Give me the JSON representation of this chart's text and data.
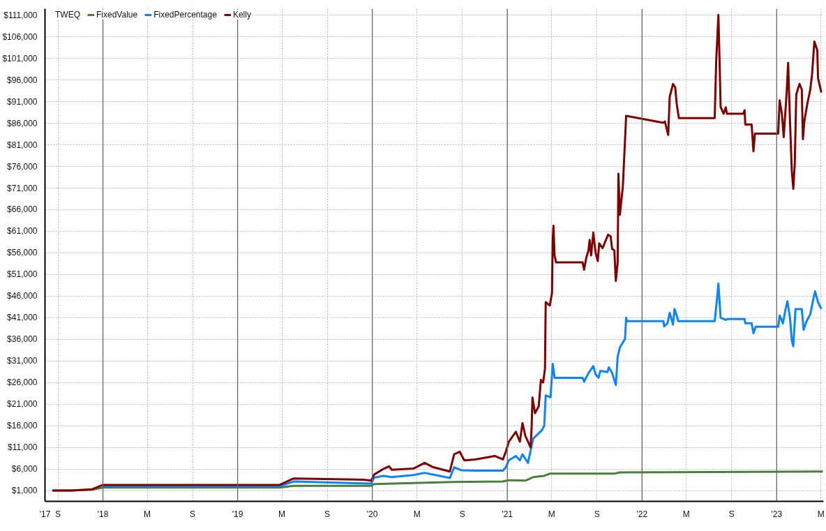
{
  "chart_data": {
    "type": "line",
    "legend_title": "TWEQ",
    "legend": "top left",
    "grid": true,
    "xlim": [
      "2017-07-28",
      "2023-05-08"
    ],
    "xticks": [
      {
        "value": "2017-07-28",
        "label": "'17"
      },
      {
        "value": "2017-09-01",
        "label": "S"
      },
      {
        "value": "2018-01-01",
        "label": "'18"
      },
      {
        "value": "2018-05-01",
        "label": "M"
      },
      {
        "value": "2018-09-01",
        "label": "S"
      },
      {
        "value": "2019-01-01",
        "label": "'19"
      },
      {
        "value": "2019-05-01",
        "label": "M"
      },
      {
        "value": "2019-09-01",
        "label": "S"
      },
      {
        "value": "2020-01-01",
        "label": "'20"
      },
      {
        "value": "2020-05-01",
        "label": "M"
      },
      {
        "value": "2020-09-01",
        "label": "S"
      },
      {
        "value": "2021-01-01",
        "label": "'21"
      },
      {
        "value": "2021-05-01",
        "label": "M"
      },
      {
        "value": "2021-09-01",
        "label": "S"
      },
      {
        "value": "2022-01-01",
        "label": "'22"
      },
      {
        "value": "2022-05-01",
        "label": "M"
      },
      {
        "value": "2022-09-01",
        "label": "S"
      },
      {
        "value": "2023-01-01",
        "label": "'23"
      },
      {
        "value": "2023-05-01",
        "label": "M"
      }
    ],
    "ylim": [
      -1500,
      112500
    ],
    "yticks": [
      {
        "value": 1000,
        "label": "$1,000"
      },
      {
        "value": 6000,
        "label": "$6,000"
      },
      {
        "value": 11000,
        "label": "$11,000"
      },
      {
        "value": 16000,
        "label": "$16,000"
      },
      {
        "value": 21000,
        "label": "$21,000"
      },
      {
        "value": 26000,
        "label": "$26,000"
      },
      {
        "value": 31000,
        "label": "$31,000"
      },
      {
        "value": 36000,
        "label": "$36,000"
      },
      {
        "value": 41000,
        "label": "$41,000"
      },
      {
        "value": 46000,
        "label": "$46,000"
      },
      {
        "value": 51000,
        "label": "$51,000"
      },
      {
        "value": 56000,
        "label": "$56,000"
      },
      {
        "value": 61000,
        "label": "$61,000"
      },
      {
        "value": 66000,
        "label": "$66,000"
      },
      {
        "value": 71000,
        "label": "$71,000"
      },
      {
        "value": 76000,
        "label": "$76,000"
      },
      {
        "value": 81000,
        "label": "$81,000"
      },
      {
        "value": 86000,
        "label": "$86,000"
      },
      {
        "value": 91000,
        "label": "$91,000"
      },
      {
        "value": 96000,
        "label": "$96,000"
      },
      {
        "value": 101000,
        "label": "$101,000"
      },
      {
        "value": 106000,
        "label": "$106,000"
      },
      {
        "value": 111000,
        "label": "$111,000"
      }
    ],
    "series": [
      {
        "name": "FixedValue",
        "color": "#4a7f3c",
        "x": [
          "2017-08-17",
          "2017-10-07",
          "2017-12-03",
          "2018-01-01",
          "2019-04-25",
          "2019-06-02",
          "2019-12-29",
          "2020-01-06",
          "2020-08-06",
          "2020-12-20",
          "2021-01-05",
          "2021-02-19",
          "2021-03-12",
          "2021-04-11",
          "2021-04-26",
          "2021-10-18",
          "2021-11-02",
          "2023-05-06"
        ],
        "values": [
          1000,
          1000,
          1200,
          1700,
          1700,
          2100,
          2100,
          2500,
          3000,
          3100,
          3400,
          3300,
          4100,
          4400,
          4900,
          4900,
          5200,
          5400
        ]
      },
      {
        "name": "FixedPercentage",
        "color": "#0a84ff",
        "x": [
          "2018-01-01",
          "2019-04-25",
          "2019-06-02",
          "2019-12-29",
          "2020-01-06",
          "2020-01-31",
          "2020-02-23",
          "2020-04-22",
          "2020-05-22",
          "2020-07-29",
          "2020-08-10",
          "2020-08-29",
          "2020-10-06",
          "2020-12-20",
          "2020-12-28",
          "2021-01-05",
          "2021-01-24",
          "2021-02-04",
          "2021-02-11",
          "2021-02-26",
          "2021-03-12",
          "2021-04-04",
          "2021-04-11",
          "2021-04-15",
          "2021-04-28",
          "2021-05-04",
          "2021-05-09",
          "2021-07-24",
          "2021-07-28",
          "2021-08-09",
          "2021-08-22",
          "2021-08-28",
          "2021-09-05",
          "2021-09-10",
          "2021-09-29",
          "2021-10-03",
          "2021-10-12",
          "2021-10-22",
          "2021-10-27",
          "2021-11-02",
          "2021-11-16",
          "2021-11-19",
          "2021-11-21",
          "2022-02-28",
          "2022-03-02",
          "2022-03-11",
          "2022-03-17",
          "2022-03-26",
          "2022-03-30",
          "2022-04-05",
          "2022-04-09",
          "2022-07-17",
          "2022-07-23",
          "2022-07-27",
          "2022-08-02",
          "2022-08-16",
          "2022-08-21",
          "2022-10-06",
          "2022-10-08",
          "2022-10-25",
          "2022-10-30",
          "2022-11-05",
          "2023-01-05",
          "2023-01-09",
          "2023-01-18",
          "2023-01-24",
          "2023-01-30",
          "2023-02-06",
          "2023-02-11",
          "2023-02-15",
          "2023-02-21",
          "2023-03-01",
          "2023-03-10",
          "2023-03-15",
          "2023-03-23",
          "2023-04-02",
          "2023-04-11",
          "2023-04-15",
          "2023-04-23",
          "2023-05-02"
        ],
        "values": [
          2000,
          2000,
          3100,
          2600,
          4000,
          4400,
          4100,
          4600,
          5100,
          3900,
          6400,
          5700,
          5600,
          5600,
          6400,
          8000,
          9000,
          8000,
          9400,
          7400,
          13000,
          14900,
          16000,
          23000,
          22600,
          30300,
          27100,
          27100,
          26200,
          28200,
          29800,
          27900,
          27100,
          28700,
          28400,
          29500,
          28200,
          25400,
          32000,
          34100,
          36100,
          41000,
          40200,
          40200,
          39000,
          39700,
          42100,
          39400,
          43000,
          41500,
          40200,
          40200,
          45100,
          48900,
          41000,
          40500,
          40700,
          40700,
          39700,
          39700,
          37400,
          38900,
          38900,
          41500,
          39700,
          42600,
          44800,
          41000,
          35700,
          34400,
          43000,
          43000,
          43000,
          38200,
          40200,
          41800,
          45600,
          47100,
          44600,
          43000
        ]
      },
      {
        "name": "Kelly",
        "color": "#800000",
        "x": [
          "2017-08-17",
          "2017-10-07",
          "2017-12-03",
          "2018-01-01",
          "2019-04-25",
          "2019-06-02",
          "2019-12-08",
          "2019-12-29",
          "2020-01-06",
          "2020-01-31",
          "2020-02-15",
          "2020-02-23",
          "2020-04-22",
          "2020-05-22",
          "2020-06-14",
          "2020-07-29",
          "2020-08-10",
          "2020-08-25",
          "2020-09-06",
          "2020-10-06",
          "2020-11-28",
          "2020-12-20",
          "2020-12-28",
          "2021-01-05",
          "2021-01-24",
          "2021-02-04",
          "2021-02-11",
          "2021-02-19",
          "2021-03-05",
          "2021-03-08",
          "2021-03-10",
          "2021-03-17",
          "2021-03-27",
          "2021-04-02",
          "2021-04-08",
          "2021-04-13",
          "2021-04-15",
          "2021-04-26",
          "2021-05-02",
          "2021-05-04",
          "2021-05-06",
          "2021-05-09",
          "2021-05-13",
          "2021-07-24",
          "2021-07-28",
          "2021-08-03",
          "2021-08-09",
          "2021-08-12",
          "2021-08-16",
          "2021-08-22",
          "2021-08-28",
          "2021-09-03",
          "2021-09-07",
          "2021-09-16",
          "2021-10-01",
          "2021-10-08",
          "2021-10-12",
          "2021-10-18",
          "2021-10-22",
          "2021-10-27",
          "2021-10-29",
          "2021-11-02",
          "2021-11-10",
          "2021-11-19",
          "2022-02-28",
          "2022-03-04",
          "2022-03-13",
          "2022-03-17",
          "2022-03-26",
          "2022-04-01",
          "2022-04-05",
          "2022-04-09",
          "2022-04-11",
          "2022-07-17",
          "2022-07-21",
          "2022-07-27",
          "2022-07-31",
          "2022-08-02",
          "2022-08-10",
          "2022-08-16",
          "2022-08-19",
          "2022-10-02",
          "2022-10-06",
          "2022-10-08",
          "2022-10-25",
          "2022-10-30",
          "2022-11-03",
          "2023-01-05",
          "2023-01-09",
          "2023-01-15",
          "2023-01-20",
          "2023-01-28",
          "2023-02-01",
          "2023-02-06",
          "2023-02-11",
          "2023-02-15",
          "2023-02-19",
          "2023-02-23",
          "2023-02-27",
          "2023-03-04",
          "2023-03-10",
          "2023-03-13",
          "2023-03-17",
          "2023-03-25",
          "2023-04-02",
          "2023-04-07",
          "2023-04-13",
          "2023-04-21",
          "2023-04-23",
          "2023-05-02"
        ],
        "values": [
          1000,
          1000,
          1300,
          2300,
          2300,
          3800,
          3500,
          3300,
          4700,
          6000,
          6600,
          5800,
          6100,
          7400,
          6400,
          5400,
          9400,
          10000,
          8000,
          8200,
          9000,
          8200,
          10000,
          12300,
          14600,
          12300,
          16600,
          13600,
          11000,
          16000,
          22500,
          18900,
          20500,
          26600,
          26000,
          29200,
          44600,
          43800,
          46700,
          59300,
          62300,
          55400,
          53800,
          53800,
          52100,
          54900,
          56600,
          59000,
          55400,
          60700,
          56100,
          54100,
          58200,
          57100,
          60200,
          59800,
          56900,
          56600,
          49500,
          53800,
          74300,
          64800,
          71300,
          87700,
          86100,
          86400,
          83300,
          92100,
          95100,
          94300,
          90500,
          88200,
          87200,
          87200,
          100300,
          111100,
          97500,
          89800,
          88200,
          89700,
          88200,
          88200,
          89000,
          85700,
          85700,
          79500,
          83600,
          83600,
          91300,
          88200,
          82800,
          93100,
          100000,
          86500,
          74900,
          70800,
          76700,
          92600,
          93800,
          95100,
          93800,
          82300,
          86500,
          90500,
          93800,
          97500,
          104900,
          102900,
          96400,
          93100
        ]
      }
    ]
  }
}
